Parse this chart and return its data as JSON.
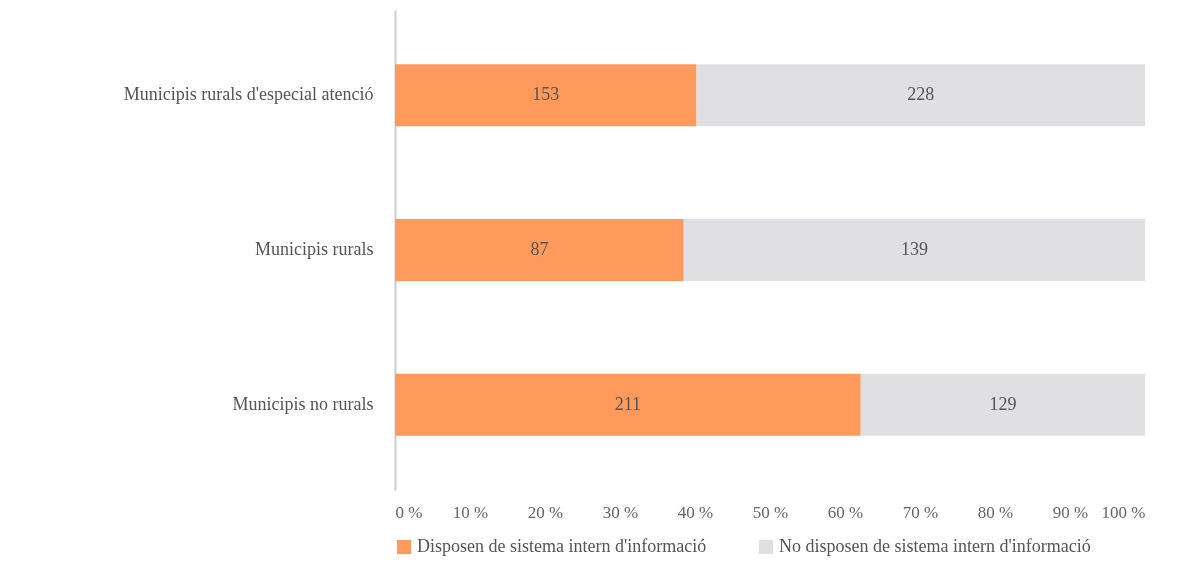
{
  "chart_data": {
    "type": "bar",
    "orientation": "horizontal",
    "stacked": true,
    "categories": [
      "Municipis rurals d'especial atenció",
      "Municipis rurals",
      "Municipis no rurals"
    ],
    "series": [
      {
        "name": "Disposen de sistema intern d'informació",
        "color": "#ff9a5c",
        "values": [
          40.2,
          38.5,
          62.1
        ]
      },
      {
        "name": "No disposen de sistema intern d'informació",
        "color": "#e0dfe4",
        "values": [
          59.8,
          61.5,
          37.9
        ]
      }
    ],
    "annotations": [
      "153",
      "87",
      "211",
      "228",
      "139",
      "129"
    ],
    "xlim": [
      0,
      100
    ],
    "xticks": [
      {
        "value": 0,
        "label": "0 %"
      },
      {
        "value": 10,
        "label": "10 %"
      },
      {
        "value": 20,
        "label": "20 %"
      },
      {
        "value": 30,
        "label": "30 %"
      },
      {
        "value": 40,
        "label": "40 %"
      },
      {
        "value": 50,
        "label": "50 %"
      },
      {
        "value": 60,
        "label": "60 %"
      },
      {
        "value": 70,
        "label": "70 %"
      },
      {
        "value": 80,
        "label": "80 %"
      },
      {
        "value": 90,
        "label": "90 %"
      },
      {
        "value": 100,
        "label": "100 %"
      }
    ],
    "grid": false,
    "legend": "bottom"
  }
}
